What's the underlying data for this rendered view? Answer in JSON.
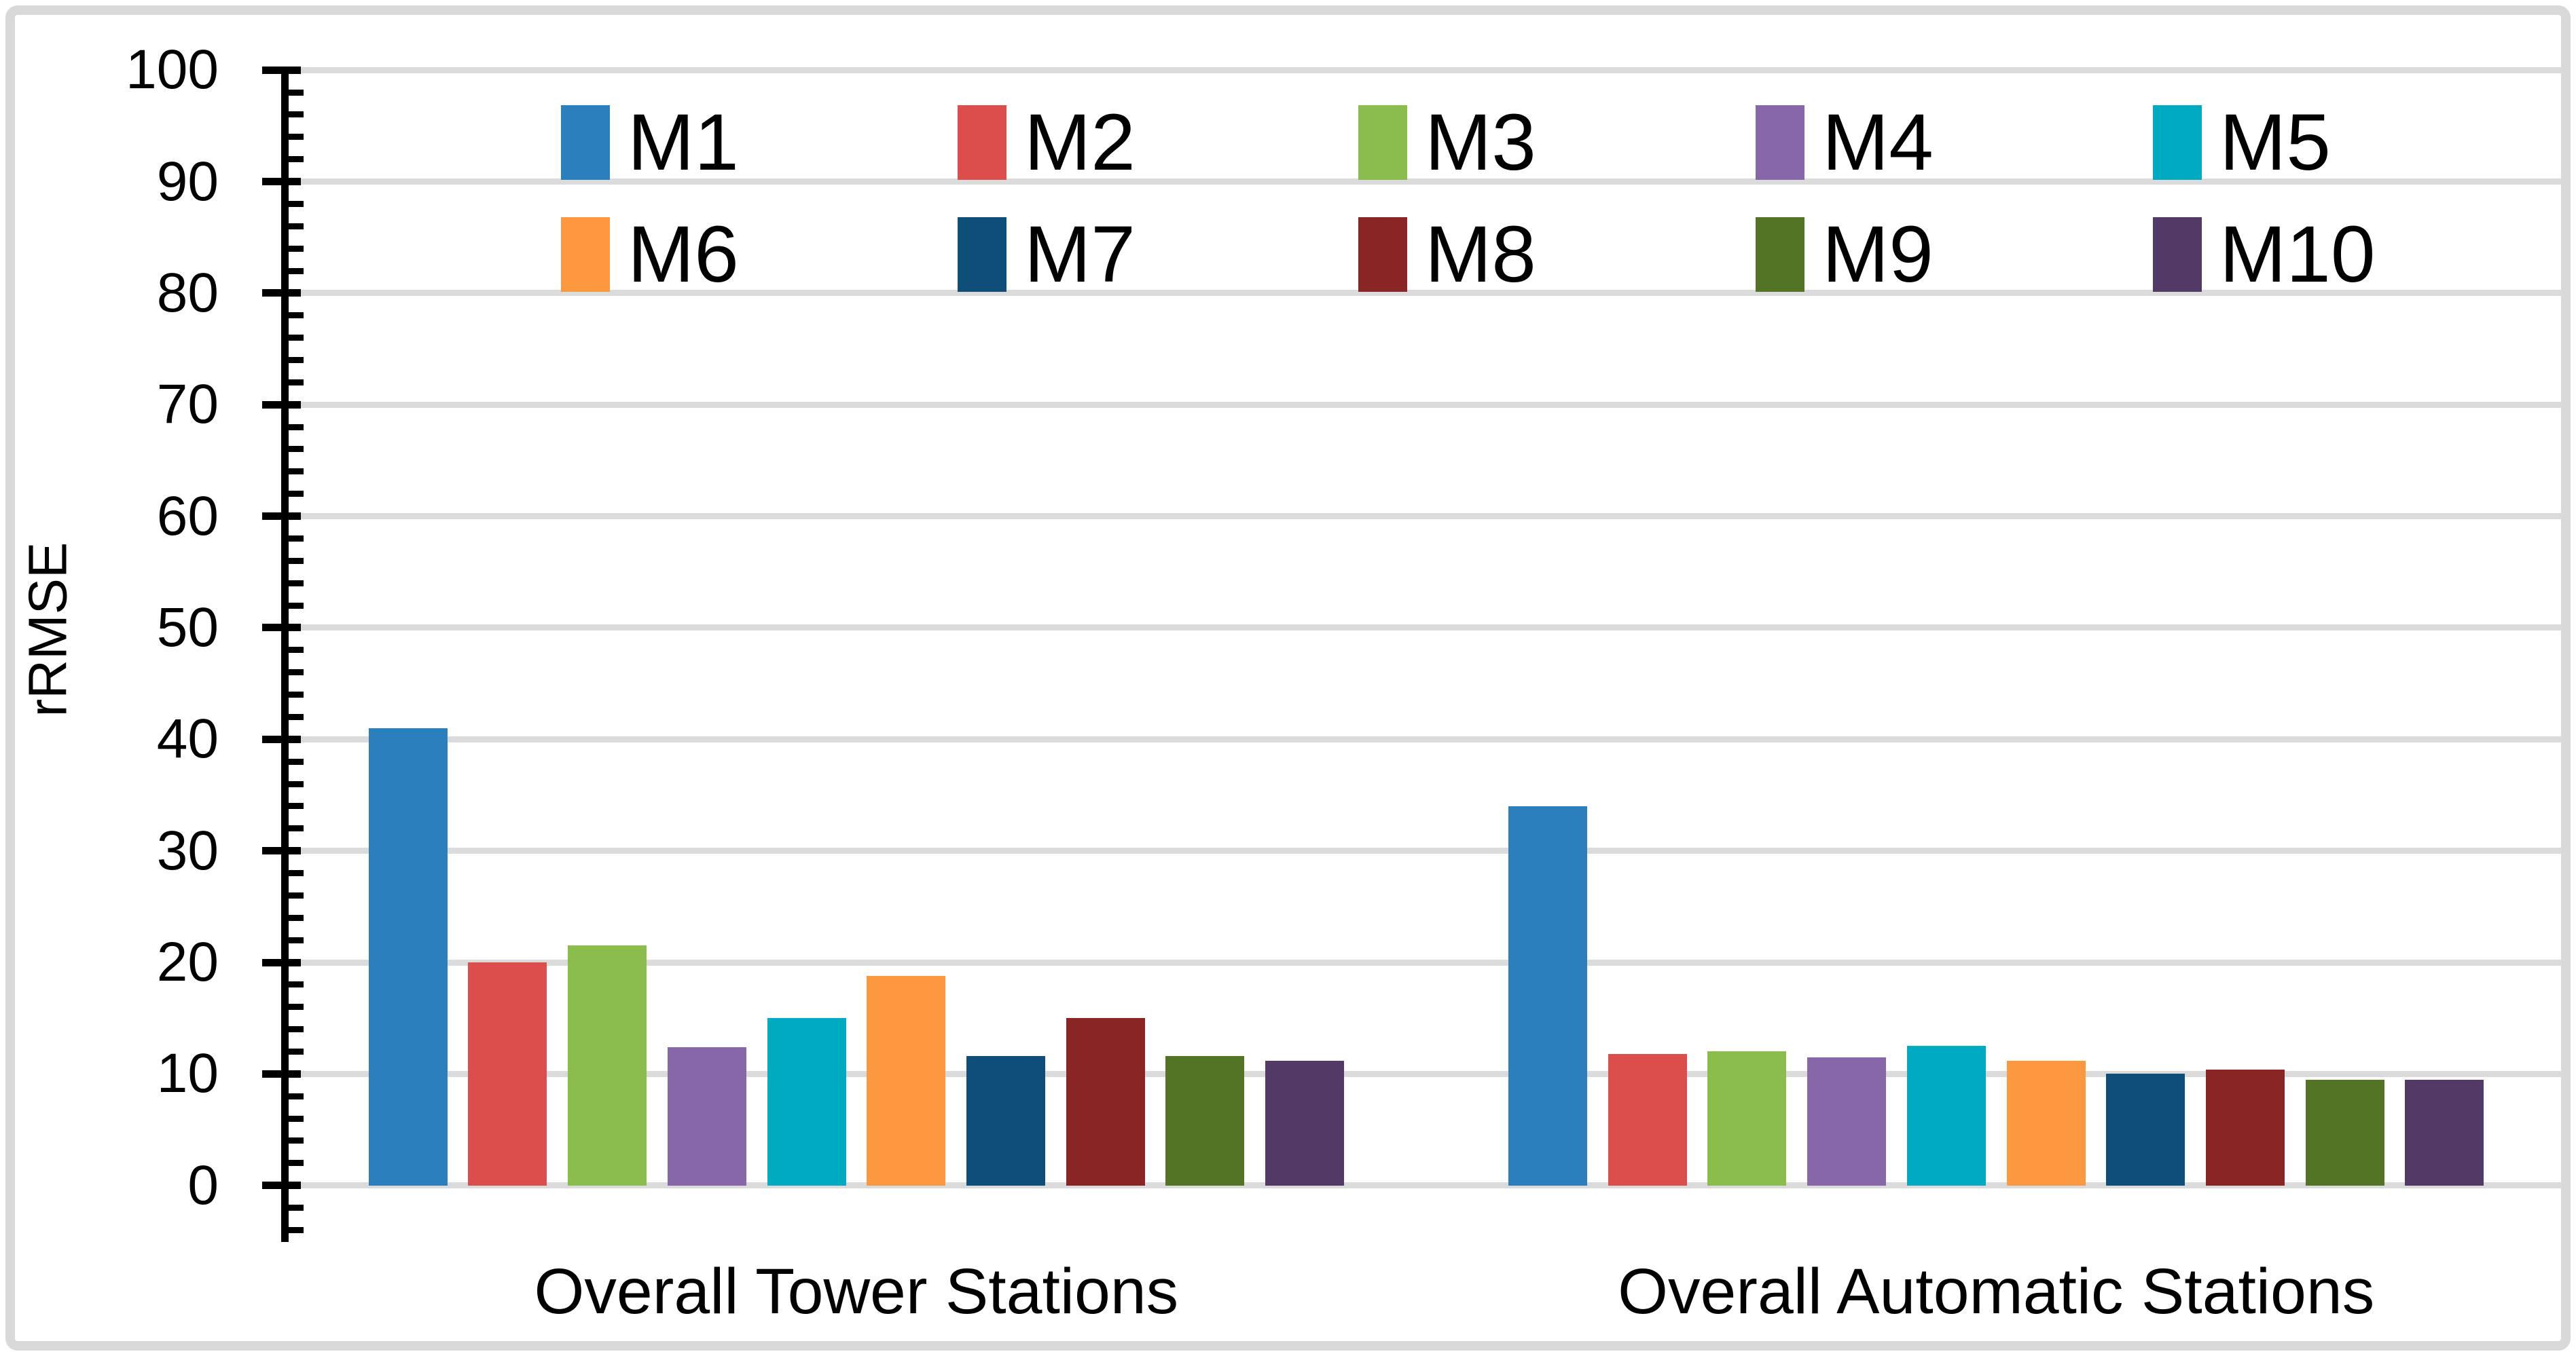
{
  "chart_data": {
    "type": "bar",
    "title": "",
    "ylabel": "rRMSE",
    "xlabel": "",
    "ylim": [
      0,
      100
    ],
    "ytick_step": 10,
    "minor_tick_step": 2,
    "grid": true,
    "legend_position": "top-two-rows",
    "categories": [
      "Overall Tower Stations",
      "Overall Automatic Stations"
    ],
    "series": [
      {
        "name": "M1",
        "color": "#2980bd",
        "values": [
          41,
          34
        ]
      },
      {
        "name": "M2",
        "color": "#db4e4c",
        "values": [
          20,
          11.8
        ]
      },
      {
        "name": "M3",
        "color": "#8bbd4d",
        "values": [
          21.5,
          12
        ]
      },
      {
        "name": "M4",
        "color": "#8767a8",
        "values": [
          12.4,
          11.5
        ]
      },
      {
        "name": "M5",
        "color": "#00abc2",
        "values": [
          15,
          12.5
        ]
      },
      {
        "name": "M6",
        "color": "#fc9940",
        "values": [
          18.8,
          11.2
        ]
      },
      {
        "name": "M7",
        "color": "#0f4e78",
        "values": [
          11.6,
          10
        ]
      },
      {
        "name": "M8",
        "color": "#8a2525",
        "values": [
          15,
          10.4
        ]
      },
      {
        "name": "M9",
        "color": "#527424",
        "values": [
          11.6,
          9.5
        ]
      },
      {
        "name": "M10",
        "color": "#533965",
        "values": [
          11.2,
          9.5
        ]
      }
    ]
  },
  "colors": {
    "frame_border": "#d9d9d9",
    "gridline": "#dbdbdb",
    "axis": "#000000",
    "text": "#000000",
    "background": "#ffffff"
  }
}
